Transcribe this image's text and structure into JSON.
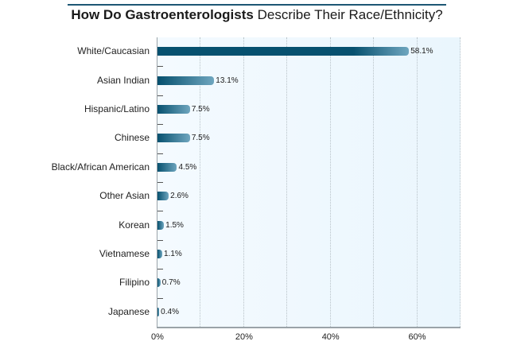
{
  "chart_data": {
    "type": "bar",
    "orientation": "horizontal",
    "title": "How Do Gastroenterologists Describe Their Race/Ethnicity?",
    "title_bold_part": "How Do Gastroenterologists",
    "title_regular_part": " Describe Their Race/Ethnicity?",
    "categories": [
      "White/Caucasian",
      "Asian Indian",
      "Hispanic/Latino",
      "Chinese",
      "Black/African American",
      "Other Asian",
      "Korean",
      "Vietnamese",
      "Filipino",
      "Japanese"
    ],
    "values": [
      58.1,
      13.1,
      7.5,
      7.5,
      4.5,
      2.6,
      1.5,
      1.1,
      0.7,
      0.4
    ],
    "value_labels": [
      "58.1%",
      "13.1%",
      "7.5%",
      "7.5%",
      "4.5%",
      "2.6%",
      "1.5%",
      "1.1%",
      "0.7%",
      "0.4%"
    ],
    "xlabel": "",
    "ylabel": "",
    "xlim": [
      0,
      70
    ],
    "x_ticks": [
      "0%",
      "20%",
      "40%",
      "60%"
    ],
    "x_tick_values": [
      0,
      20,
      40,
      60
    ],
    "grid": {
      "vertical": true,
      "style": "dotted",
      "every": 10
    },
    "legend": null,
    "colors": {
      "bar_dark": "#07516f",
      "bar_light": "#6fa6bf",
      "title_rule": "#1d5774",
      "plot_bg_left": "#f4faff",
      "plot_bg_right": "#eaf6fd"
    }
  }
}
